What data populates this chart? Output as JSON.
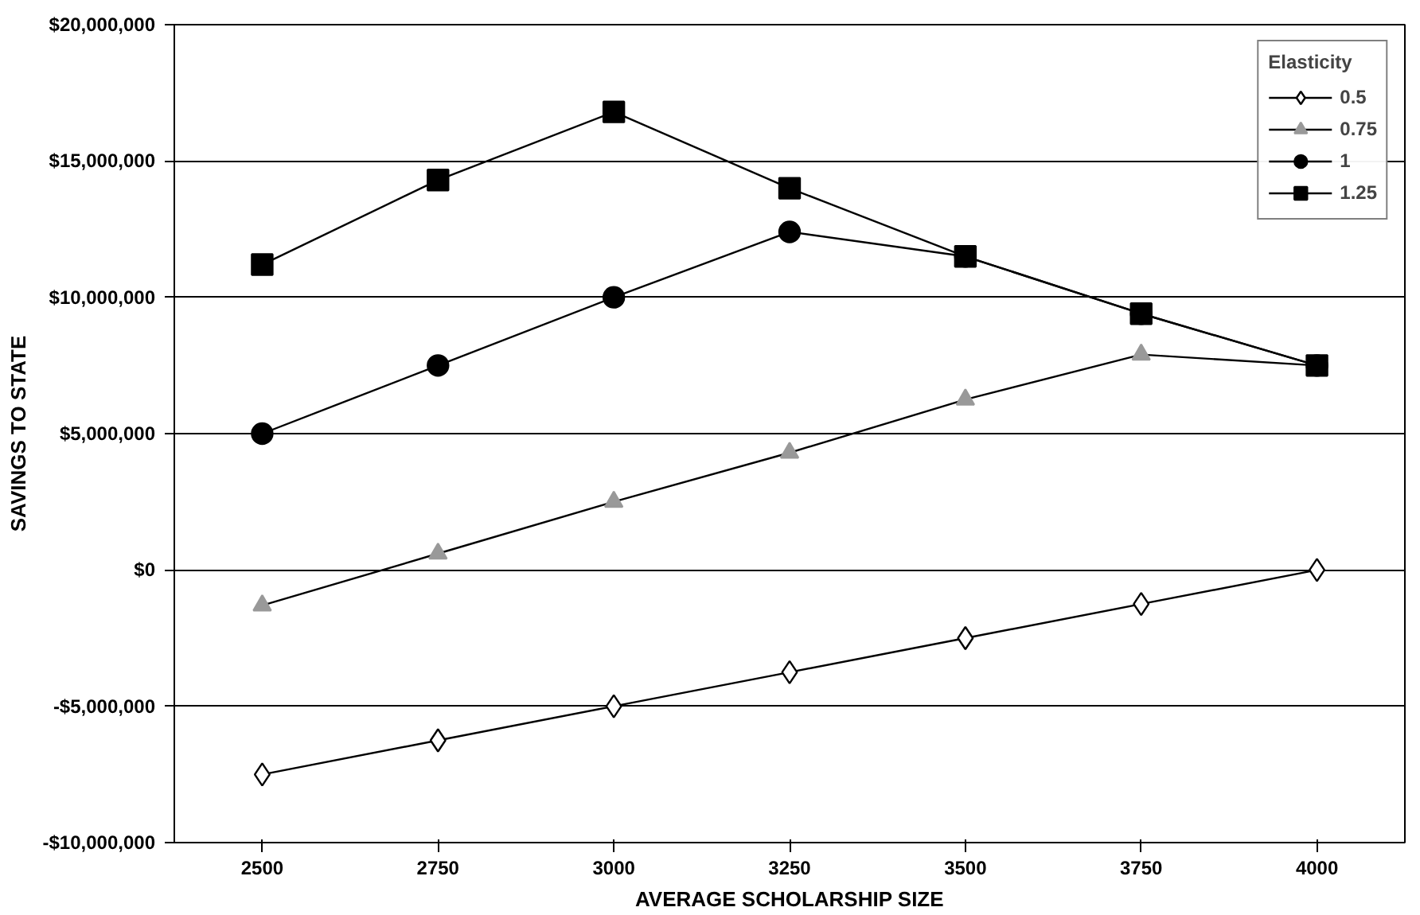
{
  "chart_data": {
    "type": "line",
    "xlabel": "AVERAGE SCHOLARSHIP SIZE",
    "ylabel": "SAVINGS TO STATE",
    "legend_title": "Elasticity",
    "legend": "top right",
    "grid": "y",
    "categories": [
      "2500",
      "2750",
      "3000",
      "3250",
      "3500",
      "3750",
      "4000"
    ],
    "ylim": [
      -10000000,
      20000000
    ],
    "yticks": [
      {
        "value": -10000000,
        "label": "-$10,000,000"
      },
      {
        "value": -5000000,
        "label": "-$5,000,000"
      },
      {
        "value": 0,
        "label": "$0"
      },
      {
        "value": 5000000,
        "label": "$5,000,000"
      },
      {
        "value": 10000000,
        "label": "$10,000,000"
      },
      {
        "value": 15000000,
        "label": "$15,000,000"
      },
      {
        "value": 20000000,
        "label": "$20,000,000"
      }
    ],
    "series": [
      {
        "name": "0.5",
        "color": "#000000",
        "marker": "diamond",
        "values": [
          -7500000,
          -6250000,
          -5000000,
          -3750000,
          -2500000,
          -1250000,
          0
        ]
      },
      {
        "name": "0.75",
        "color": "#999999",
        "marker": "triangle",
        "values": [
          -1300000,
          600000,
          2500000,
          4300000,
          6250000,
          7900000,
          7500000
        ]
      },
      {
        "name": "1",
        "color": "#000000",
        "marker": "circle",
        "values": [
          5000000,
          7500000,
          10000000,
          12400000,
          11500000,
          9400000,
          7500000
        ]
      },
      {
        "name": "1.25",
        "color": "#000000",
        "marker": "square",
        "values": [
          11200000,
          14300000,
          16800000,
          14000000,
          11500000,
          9400000,
          7500000
        ]
      }
    ]
  }
}
